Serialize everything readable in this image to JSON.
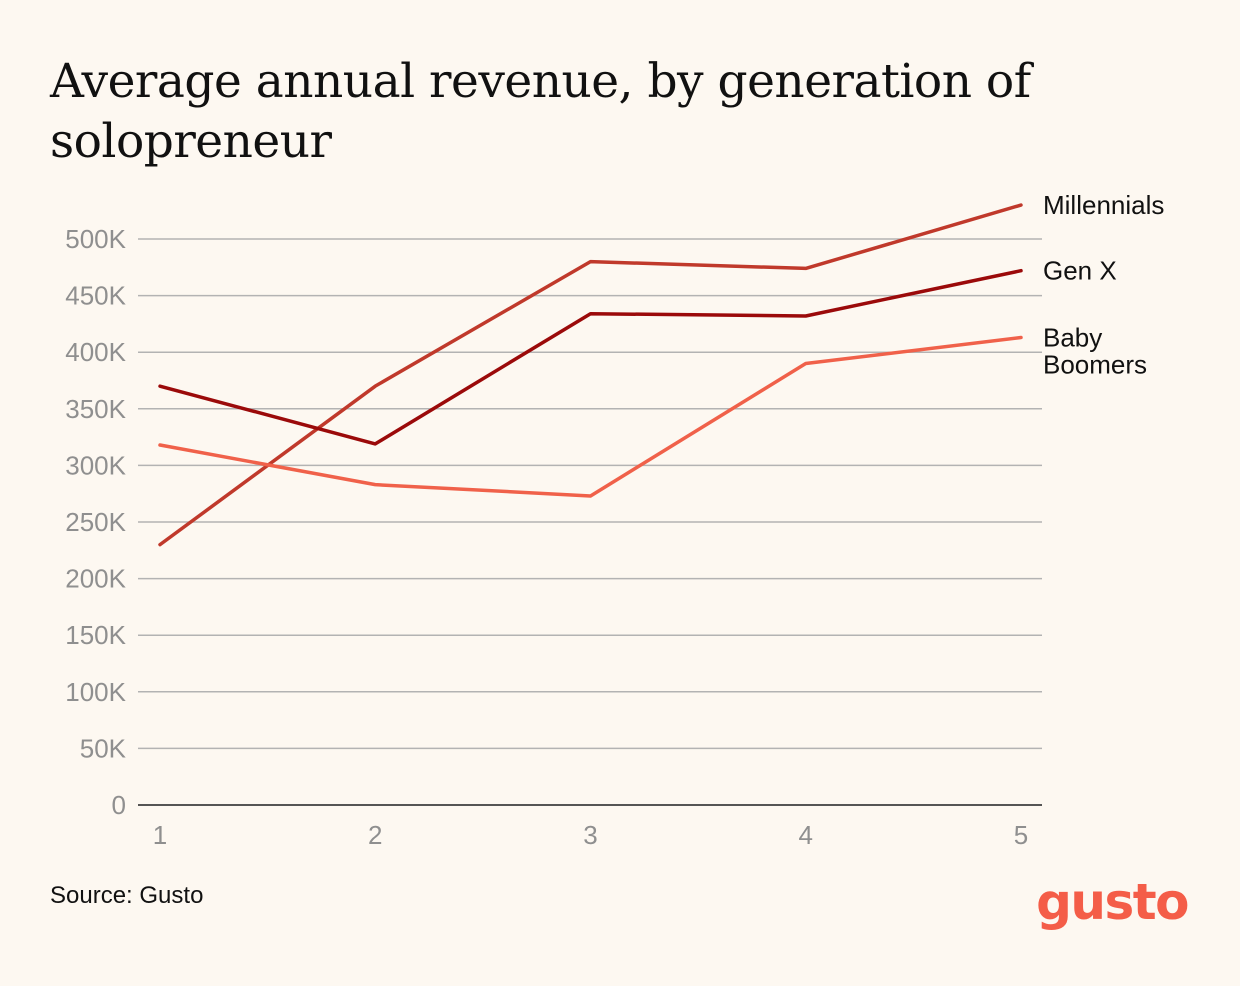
{
  "title": "Average annual revenue, by generation of solopreneur",
  "source": "Source: Gusto",
  "logo_text": "gusto",
  "chart_data": {
    "type": "line",
    "title": "Average annual revenue, by generation of solopreneur",
    "xlabel": "",
    "ylabel": "",
    "x": [
      1,
      2,
      3,
      4,
      5
    ],
    "x_tick_labels": [
      "1",
      "2",
      "3",
      "4",
      "5"
    ],
    "ylim": [
      0,
      500000
    ],
    "y_ticks": [
      0,
      50000,
      100000,
      150000,
      200000,
      250000,
      300000,
      350000,
      400000,
      450000,
      500000
    ],
    "y_tick_labels": [
      "0",
      "50K",
      "100K",
      "150K",
      "200K",
      "250K",
      "300K",
      "350K",
      "400K",
      "450K",
      "500K"
    ],
    "grid": true,
    "legend": "direct labels at right end of lines",
    "series": [
      {
        "name": "Millennials",
        "label_lines": [
          "Millennials"
        ],
        "color": "#c0392b",
        "values": [
          230000,
          370000,
          480000,
          474000,
          530000
        ]
      },
      {
        "name": "Gen X",
        "label_lines": [
          "Gen X"
        ],
        "color": "#9b0a0a",
        "values": [
          370000,
          319000,
          434000,
          432000,
          472000
        ]
      },
      {
        "name": "Baby Boomers",
        "label_lines": [
          "Baby",
          "Boomers"
        ],
        "color": "#f0614a",
        "values": [
          318000,
          283000,
          273000,
          390000,
          413000
        ]
      }
    ]
  }
}
